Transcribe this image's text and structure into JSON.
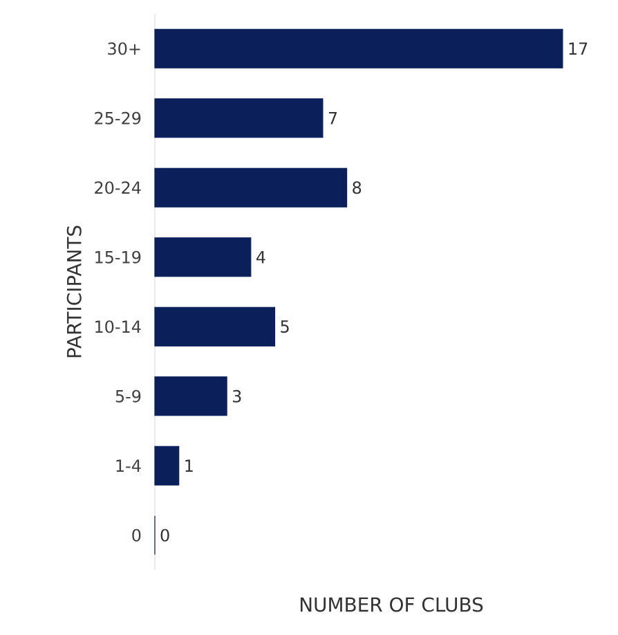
{
  "chart_data": {
    "type": "bar",
    "orientation": "horizontal",
    "xlabel": "NUMBER OF CLUBS",
    "ylabel": "PARTICIPANTS",
    "categories": [
      "30+",
      "25-29",
      "20-24",
      "15-19",
      "10-14",
      "5-9",
      "1-4",
      "0"
    ],
    "values": [
      17,
      7,
      8,
      4,
      5,
      3,
      1,
      0
    ],
    "color": "#0b1f5b",
    "data_labels": true,
    "grid": false
  }
}
